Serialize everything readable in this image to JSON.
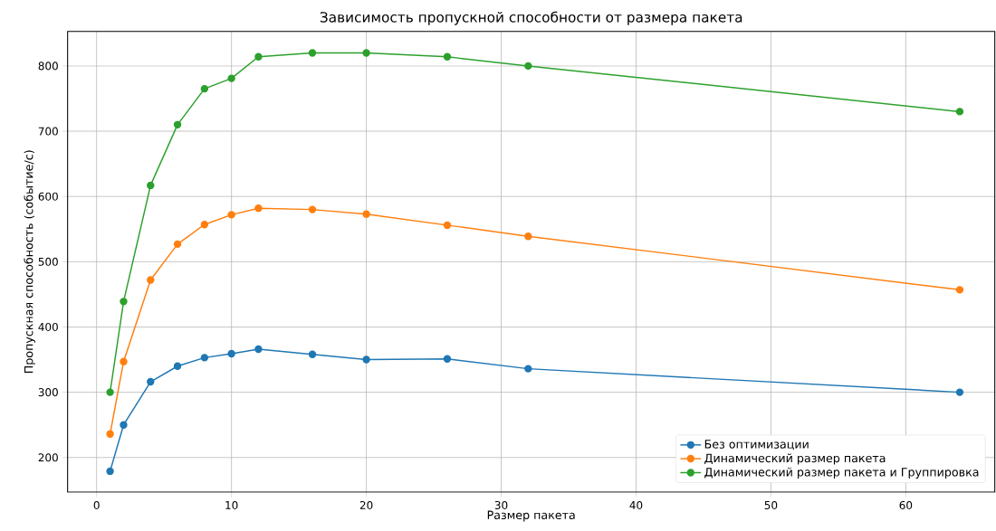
{
  "chart_data": {
    "type": "line",
    "title": "Зависимость пропускной способности от размера пакета",
    "xlabel": "Размер пакета",
    "ylabel": "Пропускная способность (событие/с)",
    "x": [
      1,
      2,
      4,
      6,
      8,
      10,
      12,
      16,
      20,
      26,
      32,
      64
    ],
    "series": [
      {
        "name": "Без оптимизации",
        "color": "#1f77b4",
        "values": [
          179,
          250,
          316,
          340,
          353,
          359,
          366,
          358,
          350,
          351,
          336,
          300
        ]
      },
      {
        "name": "Динамический размер пакета",
        "color": "#ff7f0e",
        "values": [
          236,
          347,
          472,
          527,
          557,
          572,
          582,
          580,
          573,
          556,
          539,
          457
        ]
      },
      {
        "name": "Динамический размер пакета и Группировка",
        "color": "#2ca02c",
        "values": [
          300,
          439,
          617,
          710,
          765,
          781,
          814,
          820,
          820,
          814,
          800,
          730
        ]
      }
    ],
    "xlim": [
      -2.15,
      66.6
    ],
    "ylim": [
      147,
      853
    ],
    "xticks": [
      0,
      10,
      20,
      30,
      40,
      50,
      60
    ],
    "yticks": [
      200,
      300,
      400,
      500,
      600,
      700,
      800
    ],
    "grid": true,
    "legend": "bottom right",
    "marker": "circle",
    "line_style": "solid"
  }
}
